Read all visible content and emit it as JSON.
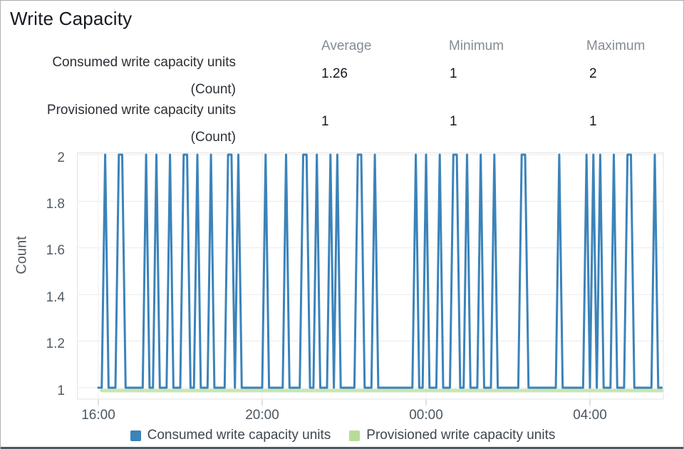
{
  "title": "Write Capacity",
  "stats": {
    "headers": [
      "Average",
      "Minimum",
      "Maximum"
    ],
    "rows": [
      {
        "label": "Consumed write capacity units",
        "unit": "(Count)",
        "average": "1.26",
        "minimum": "1",
        "maximum": "2"
      },
      {
        "label": "Provisioned write capacity units",
        "unit": "(Count)",
        "average": "1",
        "minimum": "1",
        "maximum": "1"
      }
    ]
  },
  "legend": {
    "items": [
      {
        "label": "Consumed write capacity units",
        "color": "#3b83ba"
      },
      {
        "label": "Provisioned write capacity units",
        "color": "#b7dc99"
      }
    ]
  },
  "colors": {
    "consumed_blue": "#3b83ba",
    "provisioned_green": "#b7dc99",
    "grid_line": "#ebebeb",
    "plot_border": "#e3e3e3",
    "bottom_border": "#4d5a64"
  },
  "chart_data": {
    "type": "line",
    "title": "Write Capacity",
    "xlabel": "",
    "ylabel": "Count",
    "ylim": [
      0.95,
      2.01
    ],
    "grid": true,
    "legend_position": "bottom",
    "y_tick_labels": [
      "2",
      "1.8",
      "1.6",
      "1.4",
      "1.2",
      "1"
    ],
    "y_tick_values": [
      2,
      1.8,
      1.6,
      1.4,
      1.2,
      1
    ],
    "x_start_time": "16:00",
    "x_interval_minutes": 5,
    "x_ticks": [
      {
        "label": "16:00",
        "index": 0
      },
      {
        "label": "20:00",
        "index": 48
      },
      {
        "label": "00:00",
        "index": 96
      },
      {
        "label": "04:00",
        "index": 144
      }
    ],
    "series": [
      {
        "name": "Consumed write capacity units",
        "color": "#3b83ba",
        "values": [
          1,
          1,
          2,
          1,
          1,
          1,
          2,
          2,
          1,
          1,
          1,
          1,
          1,
          1,
          2,
          1,
          1,
          2,
          1,
          1,
          1,
          2,
          1,
          1,
          1,
          2,
          2,
          1,
          1,
          2,
          1,
          1,
          1,
          2,
          1,
          1,
          1,
          1,
          2,
          2,
          1,
          2,
          1,
          1,
          1,
          1,
          1,
          1,
          1,
          2,
          1,
          1,
          1,
          1,
          1,
          2,
          1,
          1,
          1,
          1,
          2,
          2,
          1,
          1,
          2,
          1,
          1,
          1,
          2,
          1,
          2,
          1,
          1,
          1,
          1,
          1,
          2,
          2,
          1,
          1,
          1,
          2,
          1,
          1,
          1,
          1,
          1,
          1,
          1,
          1,
          1,
          1,
          1,
          2,
          1,
          1,
          2,
          1,
          1,
          1,
          2,
          1,
          1,
          1,
          2,
          2,
          1,
          1,
          2,
          1,
          1,
          1,
          2,
          1,
          1,
          1,
          2,
          1,
          1,
          1,
          1,
          1,
          1,
          1,
          2,
          2,
          1,
          1,
          1,
          1,
          1,
          1,
          1,
          1,
          1,
          2,
          1,
          1,
          1,
          1,
          1,
          1,
          1,
          2,
          1,
          2,
          1,
          2,
          1,
          1,
          1,
          2,
          1,
          1,
          1,
          2,
          2,
          1,
          1,
          1,
          1,
          1,
          1,
          2,
          1,
          1
        ]
      },
      {
        "name": "Provisioned write capacity units",
        "color": "#b7dc99",
        "constant_value": 1,
        "points": 166
      }
    ]
  }
}
